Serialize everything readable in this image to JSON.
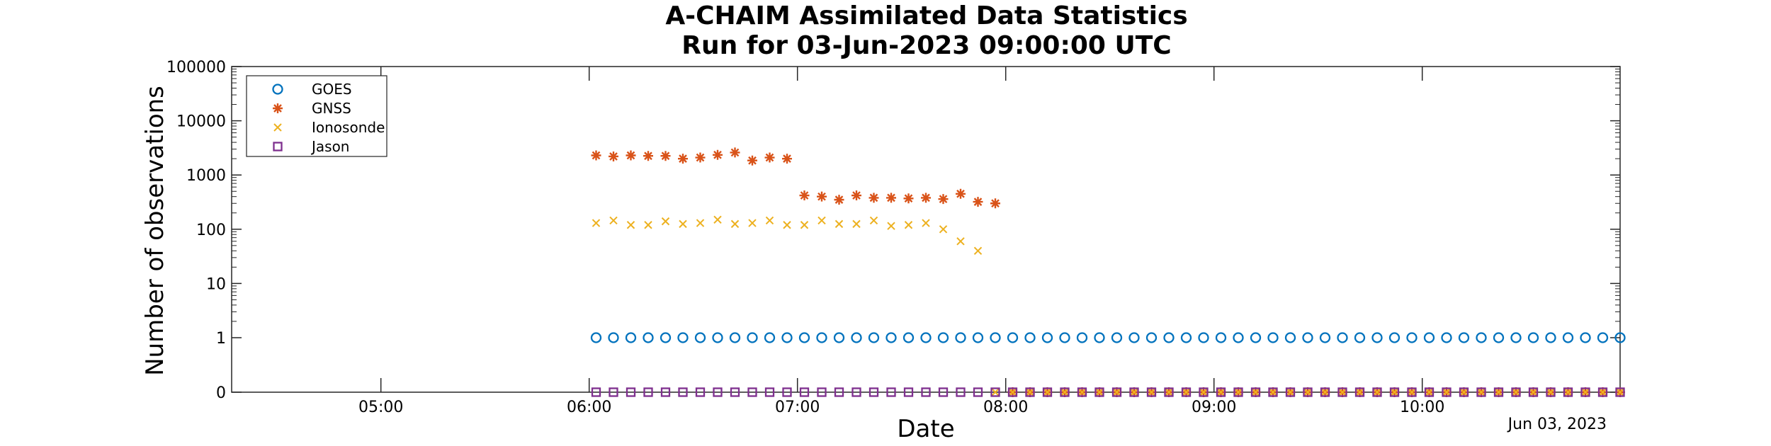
{
  "chart_data": {
    "type": "scatter",
    "title": "A-CHAIM Assimilated Data Statistics",
    "subtitle": "Run for 03-Jun-2023 09:00:00 UTC",
    "xlabel": "Date",
    "ylabel": "Number of observations",
    "date_note": "Jun 03, 2023",
    "y_scale": "log",
    "ylim": [
      0,
      100000
    ],
    "xlim": [
      "04:17",
      "10:57"
    ],
    "x_ticks": [
      "05:00",
      "06:00",
      "07:00",
      "08:00",
      "09:00",
      "10:00"
    ],
    "y_ticks": [
      "0",
      "1",
      "10",
      "100",
      "1000",
      "10000",
      "100000"
    ],
    "grid": false,
    "legend_position": "top-left",
    "series": [
      {
        "name": "GOES",
        "marker": "circle",
        "color": "#0072BD",
        "x": [
          "06:02",
          "06:07",
          "06:12",
          "06:17",
          "06:22",
          "06:27",
          "06:32",
          "06:37",
          "06:42",
          "06:47",
          "06:52",
          "06:57",
          "07:02",
          "07:07",
          "07:12",
          "07:17",
          "07:22",
          "07:27",
          "07:32",
          "07:37",
          "07:42",
          "07:47",
          "07:52",
          "07:57",
          "08:02",
          "08:07",
          "08:12",
          "08:17",
          "08:22",
          "08:27",
          "08:32",
          "08:37",
          "08:42",
          "08:47",
          "08:52",
          "08:57",
          "09:02",
          "09:07",
          "09:12",
          "09:17",
          "09:22",
          "09:27",
          "09:32",
          "09:37",
          "09:42",
          "09:47",
          "09:52",
          "09:57",
          "10:02",
          "10:07",
          "10:12",
          "10:17",
          "10:22",
          "10:27",
          "10:32",
          "10:37",
          "10:42",
          "10:47",
          "10:52",
          "10:57"
        ],
        "y": [
          1,
          1,
          1,
          1,
          1,
          1,
          1,
          1,
          1,
          1,
          1,
          1,
          1,
          1,
          1,
          1,
          1,
          1,
          1,
          1,
          1,
          1,
          1,
          1,
          1,
          1,
          1,
          1,
          1,
          1,
          1,
          1,
          1,
          1,
          1,
          1,
          1,
          1,
          1,
          1,
          1,
          1,
          1,
          1,
          1,
          1,
          1,
          1,
          1,
          1,
          1,
          1,
          1,
          1,
          1,
          1,
          1,
          1,
          1,
          1
        ]
      },
      {
        "name": "GNSS",
        "marker": "asterisk",
        "color": "#D95319",
        "x": [
          "06:02",
          "06:07",
          "06:12",
          "06:17",
          "06:22",
          "06:27",
          "06:32",
          "06:37",
          "06:42",
          "06:47",
          "06:52",
          "06:57",
          "07:02",
          "07:07",
          "07:12",
          "07:17",
          "07:22",
          "07:27",
          "07:32",
          "07:37",
          "07:42",
          "07:47",
          "07:52",
          "07:57",
          "08:02",
          "08:07",
          "08:12",
          "08:17",
          "08:22",
          "08:27",
          "08:32",
          "08:37",
          "08:42",
          "08:47",
          "08:52",
          "08:57",
          "09:02",
          "09:07",
          "09:12",
          "09:17",
          "09:22",
          "09:27",
          "09:32",
          "09:37",
          "09:42",
          "09:47",
          "09:52",
          "09:57",
          "10:02",
          "10:07",
          "10:12",
          "10:17",
          "10:22",
          "10:27",
          "10:32",
          "10:37",
          "10:42",
          "10:47",
          "10:52",
          "10:57"
        ],
        "y": [
          2300,
          2200,
          2300,
          2250,
          2250,
          2000,
          2100,
          2350,
          2600,
          1850,
          2100,
          2000,
          420,
          400,
          350,
          420,
          380,
          380,
          370,
          380,
          360,
          450,
          320,
          300,
          0,
          0,
          0,
          0,
          0,
          0,
          0,
          0,
          0,
          0,
          0,
          0,
          0,
          0,
          0,
          0,
          0,
          0,
          0,
          0,
          0,
          0,
          0,
          0,
          0,
          0,
          0,
          0,
          0,
          0,
          0,
          0,
          0,
          0,
          0,
          0
        ]
      },
      {
        "name": "Ionosonde",
        "marker": "x",
        "color": "#EDB120",
        "x": [
          "06:02",
          "06:07",
          "06:12",
          "06:17",
          "06:22",
          "06:27",
          "06:32",
          "06:37",
          "06:42",
          "06:47",
          "06:52",
          "06:57",
          "07:02",
          "07:07",
          "07:12",
          "07:17",
          "07:22",
          "07:27",
          "07:32",
          "07:37",
          "07:42",
          "07:47",
          "07:52",
          "07:57",
          "08:02",
          "08:07",
          "08:12",
          "08:17",
          "08:22",
          "08:27",
          "08:32",
          "08:37",
          "08:42",
          "08:47",
          "08:52",
          "08:57",
          "09:02",
          "09:07",
          "09:12",
          "09:17",
          "09:22",
          "09:27",
          "09:32",
          "09:37",
          "09:42",
          "09:47",
          "09:52",
          "09:57",
          "10:02",
          "10:07",
          "10:12",
          "10:17",
          "10:22",
          "10:27",
          "10:32",
          "10:37",
          "10:42",
          "10:47",
          "10:52",
          "10:57"
        ],
        "y": [
          130,
          145,
          120,
          120,
          140,
          125,
          130,
          150,
          125,
          130,
          145,
          120,
          120,
          145,
          125,
          125,
          145,
          115,
          120,
          130,
          100,
          60,
          40,
          0,
          0,
          0,
          0,
          0,
          0,
          0,
          0,
          0,
          0,
          0,
          0,
          0,
          0,
          0,
          0,
          0,
          0,
          0,
          0,
          0,
          0,
          0,
          0,
          0,
          0,
          0,
          0,
          0,
          0,
          0,
          0,
          0,
          0,
          0,
          0,
          0
        ]
      },
      {
        "name": "Jason",
        "marker": "square",
        "color": "#7E2F8E",
        "x": [
          "06:02",
          "06:07",
          "06:12",
          "06:17",
          "06:22",
          "06:27",
          "06:32",
          "06:37",
          "06:42",
          "06:47",
          "06:52",
          "06:57",
          "07:02",
          "07:07",
          "07:12",
          "07:17",
          "07:22",
          "07:27",
          "07:32",
          "07:37",
          "07:42",
          "07:47",
          "07:52",
          "07:57",
          "08:02",
          "08:07",
          "08:12",
          "08:17",
          "08:22",
          "08:27",
          "08:32",
          "08:37",
          "08:42",
          "08:47",
          "08:52",
          "08:57",
          "09:02",
          "09:07",
          "09:12",
          "09:17",
          "09:22",
          "09:27",
          "09:32",
          "09:37",
          "09:42",
          "09:47",
          "09:52",
          "09:57",
          "10:02",
          "10:07",
          "10:12",
          "10:17",
          "10:22",
          "10:27",
          "10:32",
          "10:37",
          "10:42",
          "10:47",
          "10:52",
          "10:57"
        ],
        "y": [
          0,
          0,
          0,
          0,
          0,
          0,
          0,
          0,
          0,
          0,
          0,
          0,
          0,
          0,
          0,
          0,
          0,
          0,
          0,
          0,
          0,
          0,
          0,
          0,
          0,
          0,
          0,
          0,
          0,
          0,
          0,
          0,
          0,
          0,
          0,
          0,
          0,
          0,
          0,
          0,
          0,
          0,
          0,
          0,
          0,
          0,
          0,
          0,
          0,
          0,
          0,
          0,
          0,
          0,
          0,
          0,
          0,
          0,
          0,
          0
        ]
      }
    ]
  }
}
